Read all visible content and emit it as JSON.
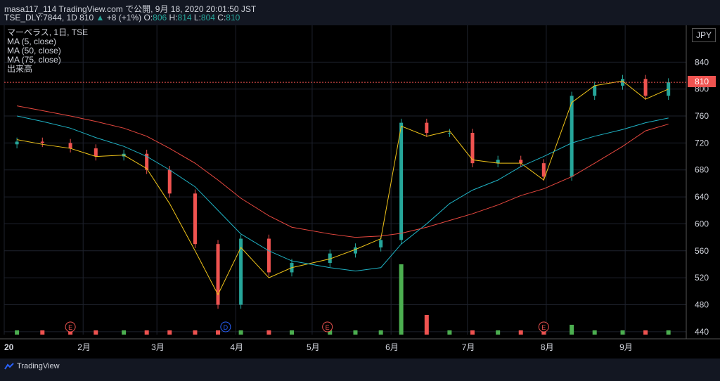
{
  "header": {
    "line1": "masa117_114 TradingView.com で公開, 9月 18, 2020 20:01:50 JST",
    "symbol": "TSE_DLY:7844, 1D 810",
    "change_arrow": "▲",
    "change": "+8 (+1%)",
    "o_label": "O:",
    "o_value": "806",
    "h_label": "H:",
    "h_value": "814",
    "l_label": "L:",
    "l_value": "804",
    "c_label": "C:",
    "c_value": "810"
  },
  "legend": [
    "マーベラス, 1日, TSE",
    "MA (5, close)",
    "MA (50, close)",
    "MA (75, close)",
    "出来高"
  ],
  "currency_button": "JPY",
  "last_price": "810",
  "price_axis": [
    "840",
    "800",
    "760",
    "720",
    "680",
    "640",
    "600",
    "560",
    "520",
    "480",
    "440"
  ],
  "time_axis": [
    "20",
    "2月",
    "3月",
    "4月",
    "5月",
    "6月",
    "7月",
    "8月",
    "9月"
  ],
  "event_markers": [
    "E",
    "D",
    "E",
    "E"
  ],
  "footer_brand": "TradingView",
  "colors": {
    "up": "#26a69a",
    "down": "#ef5350",
    "ma5": "#f0c419",
    "ma50": "#1fb2c4",
    "ma75": "#e8483f",
    "vol_up": "#4caf50",
    "vol_down": "#ef5350",
    "background": "#000000"
  },
  "chart_data": {
    "type": "candlestick",
    "ylim": [
      420,
      880
    ],
    "x": [
      "2020-01-06",
      "2020-01-16",
      "2020-01-27",
      "2020-02-06",
      "2020-02-17",
      "2020-02-26",
      "2020-03-06",
      "2020-03-16",
      "2020-03-25",
      "2020-04-03",
      "2020-04-14",
      "2020-04-23",
      "2020-05-08",
      "2020-05-18",
      "2020-05-28",
      "2020-06-05",
      "2020-06-15",
      "2020-06-24",
      "2020-07-03",
      "2020-07-13",
      "2020-07-22",
      "2020-07-31",
      "2020-08-11",
      "2020-08-20",
      "2020-08-31",
      "2020-09-09",
      "2020-09-18"
    ],
    "series": [
      {
        "name": "close",
        "values": [
          722,
          720,
          712,
          700,
          704,
          680,
          645,
          570,
          480,
          578,
          528,
          542,
          556,
          565,
          576,
          750,
          735,
          735,
          690,
          695,
          690,
          670,
          790,
          805,
          815,
          790,
          810
        ]
      },
      {
        "name": "MA (5, close)",
        "values": [
          725,
          718,
          712,
          700,
          702,
          682,
          630,
          560,
          495,
          565,
          520,
          535,
          548,
          562,
          578,
          745,
          730,
          738,
          695,
          690,
          690,
          665,
          780,
          805,
          812,
          785,
          800
        ]
      },
      {
        "name": "MA (50, close)",
        "values": [
          760,
          752,
          742,
          728,
          715,
          700,
          680,
          655,
          620,
          585,
          560,
          545,
          535,
          530,
          535,
          570,
          600,
          630,
          650,
          665,
          685,
          700,
          720,
          730,
          740,
          750,
          757
        ]
      },
      {
        "name": "MA (75, close)",
        "values": [
          775,
          768,
          760,
          752,
          742,
          730,
          712,
          690,
          665,
          638,
          612,
          595,
          585,
          580,
          582,
          586,
          595,
          605,
          615,
          628,
          642,
          652,
          670,
          690,
          715,
          738,
          748
        ]
      }
    ]
  }
}
